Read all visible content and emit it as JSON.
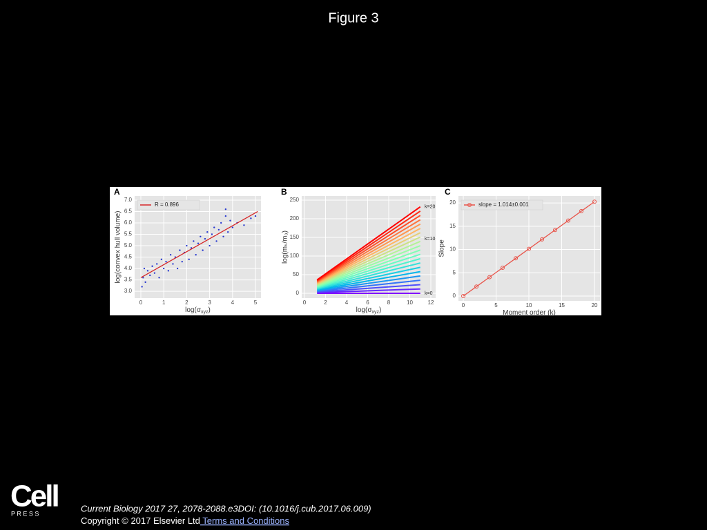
{
  "header": {
    "title": "Figure 3"
  },
  "chart_data": [
    {
      "type": "scatter",
      "panel": "A",
      "x_label": [
        "log(σ",
        "xyz",
        ")"
      ],
      "y_label": "log(convex hull volume)",
      "xlim": [
        -0.27,
        5.24
      ],
      "xticks": [
        0,
        1,
        2,
        3,
        4,
        5
      ],
      "ylim": [
        2.7,
        7.18
      ],
      "yticks": [
        {
          "value": 3,
          "label": "3.0"
        },
        {
          "value": 3.5,
          "label": "3.5"
        },
        {
          "value": 4,
          "label": "4.0"
        },
        {
          "value": 4.5,
          "label": "4.5"
        },
        {
          "value": 5,
          "label": "5.0"
        },
        {
          "value": 5.5,
          "label": "5.5"
        },
        {
          "value": 6,
          "label": "6.0"
        },
        {
          "value": 6.5,
          "label": "6.5"
        },
        {
          "value": 7,
          "label": "7.0"
        }
      ],
      "grid": true,
      "legend": "upper left",
      "points": {
        "color": "#2a3bd0",
        "x": [
          0.05,
          0.1,
          0.15,
          0.2,
          0.3,
          0.4,
          0.5,
          0.6,
          0.7,
          0.8,
          0.9,
          1.0,
          1.1,
          1.2,
          1.3,
          1.4,
          1.5,
          1.6,
          1.7,
          1.8,
          1.9,
          2.0,
          2.1,
          2.2,
          2.3,
          2.4,
          2.5,
          2.6,
          2.7,
          2.8,
          2.9,
          3.0,
          3.1,
          3.2,
          3.3,
          3.4,
          3.5,
          3.6,
          3.7,
          3.7,
          3.8,
          3.9,
          4.0,
          4.2,
          4.5,
          4.8,
          5.0
        ],
        "y": [
          3.2,
          3.6,
          4.0,
          3.4,
          3.9,
          3.7,
          4.1,
          3.8,
          4.2,
          3.6,
          4.4,
          4.0,
          4.3,
          3.9,
          4.6,
          4.2,
          4.5,
          4.0,
          4.8,
          4.3,
          4.7,
          5.0,
          4.4,
          4.9,
          5.2,
          4.6,
          5.1,
          5.4,
          4.8,
          5.3,
          5.6,
          5.0,
          5.5,
          5.8,
          5.2,
          5.7,
          6.0,
          5.4,
          6.3,
          6.6,
          5.6,
          6.1,
          5.8,
          6.0,
          5.9,
          6.2,
          6.3
        ]
      },
      "series": [
        {
          "name": "R = 0.896",
          "color": "#d62728",
          "x": [
            0,
            5.1
          ],
          "values": [
            3.6,
            6.5
          ]
        }
      ]
    },
    {
      "type": "line",
      "panel": "B",
      "x_label": [
        "log(σ",
        "xyz",
        ")"
      ],
      "y_label": "log(mₖ/m₀)",
      "xlim": [
        -0.26,
        12.46
      ],
      "xticks": [
        0,
        2,
        4,
        6,
        8,
        10,
        12
      ],
      "ylim": [
        -13,
        261
      ],
      "yticks": [
        0,
        50,
        100,
        150,
        200,
        250
      ],
      "grid": true,
      "annotations": [
        "k=20",
        "k=10",
        "k=0"
      ],
      "x": [
        1.2,
        3,
        5,
        7,
        9,
        11
      ],
      "series": [
        {
          "color": "#8000ff",
          "values": [
            0,
            0,
            0,
            0,
            0,
            0
          ]
        },
        {
          "color": "#6629fe",
          "values": [
            1.8,
            3.6,
            5.6,
            7.6,
            9.6,
            11.6
          ]
        },
        {
          "color": "#4d4dfc",
          "values": [
            3.6,
            7.2,
            11.2,
            15.2,
            19.2,
            23.2
          ]
        },
        {
          "color": "#3473f8",
          "values": [
            5.4,
            10.8,
            16.8,
            22.8,
            28.8,
            34.8
          ]
        },
        {
          "color": "#1a96f3",
          "values": [
            7.2,
            14.4,
            22.4,
            30.4,
            38.4,
            46.4
          ]
        },
        {
          "color": "#00b5eb",
          "values": [
            9,
            18,
            28,
            38,
            48,
            58
          ]
        },
        {
          "color": "#19cee3",
          "values": [
            10.8,
            21.6,
            33.6,
            45.6,
            57.6,
            69.6
          ]
        },
        {
          "color": "#33e2da",
          "values": [
            12.6,
            25.2,
            39.2,
            53.2,
            67.2,
            81.2
          ]
        },
        {
          "color": "#4df3ce",
          "values": [
            14.4,
            28.8,
            44.8,
            60.8,
            76.8,
            92.8
          ]
        },
        {
          "color": "#66fcc2",
          "values": [
            16.2,
            32.4,
            50.4,
            68.4,
            86.4,
            104.4
          ]
        },
        {
          "color": "#80ffb4",
          "values": [
            18,
            36,
            56,
            76,
            96,
            116
          ]
        },
        {
          "color": "#99fca6",
          "values": [
            19.8,
            39.6,
            61.6,
            83.6,
            105.6,
            127.6
          ]
        },
        {
          "color": "#b3f396",
          "values": [
            21.6,
            43.2,
            67.2,
            91.2,
            115.2,
            139.2
          ]
        },
        {
          "color": "#cce285",
          "values": [
            23.4,
            46.8,
            72.8,
            98.8,
            124.8,
            150.8
          ]
        },
        {
          "color": "#e6ce74",
          "values": [
            25.2,
            50.4,
            78.4,
            106.4,
            134.4,
            162.4
          ]
        },
        {
          "color": "#ffb462",
          "values": [
            27,
            54,
            84,
            114,
            144,
            174
          ]
        },
        {
          "color": "#ff964f",
          "values": [
            28.8,
            57.6,
            89.6,
            121.6,
            153.6,
            185.6
          ]
        },
        {
          "color": "#ff733c",
          "values": [
            30.6,
            61.2,
            95.2,
            129.2,
            163.2,
            197.2
          ]
        },
        {
          "color": "#ff4d27",
          "values": [
            32.4,
            64.8,
            100.8,
            136.8,
            172.8,
            208.8
          ]
        },
        {
          "color": "#ff2913",
          "values": [
            34.2,
            68.4,
            106.4,
            144.4,
            182.4,
            220.4
          ]
        },
        {
          "color": "#ff0000",
          "values": [
            36,
            72,
            112,
            152,
            192,
            232
          ]
        }
      ]
    },
    {
      "type": "line",
      "panel": "C",
      "x_label": [
        "Moment order (k)"
      ],
      "y_label": "Slope",
      "xlim": [
        -0.74,
        20.84
      ],
      "xticks": [
        0,
        5,
        10,
        15,
        20
      ],
      "ylim": [
        -1.04,
        21.5
      ],
      "yticks": [
        0,
        5,
        10,
        15,
        20
      ],
      "grid": true,
      "legend": "upper left",
      "x": [
        0,
        2,
        4,
        6,
        8,
        10,
        12,
        14,
        16,
        18,
        20
      ],
      "series": [
        {
          "name": "slope = 1.014±0.001",
          "color": "#e8544a",
          "values": [
            0,
            2.03,
            4.06,
            6.08,
            8.11,
            10.14,
            12.17,
            14.2,
            16.22,
            18.25,
            20.28
          ]
        }
      ]
    }
  ],
  "footer": {
    "logo": "Cell",
    "logo_sub": "P R E S S",
    "citation": "Current Biology 2017 27, 2078-2088.e3DOI: (10.1016/j.cub.2017.06.009)",
    "copyright": "Copyright © 2017 Elsevier Ltd",
    "link": " Terms and Conditions"
  }
}
